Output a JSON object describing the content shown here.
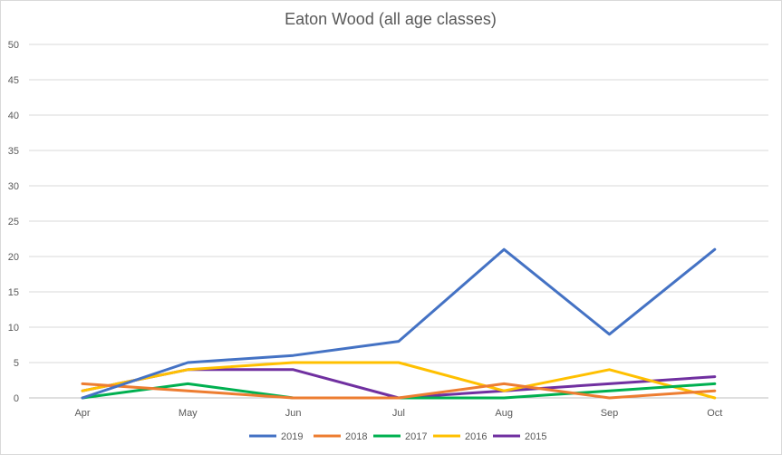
{
  "chart_data": {
    "type": "line",
    "title": "Eaton Wood (all age classes)",
    "xlabel": "",
    "ylabel": "",
    "categories": [
      "Apr",
      "May",
      "Jun",
      "Jul",
      "Aug",
      "Sep",
      "Oct"
    ],
    "ylim": [
      0,
      50
    ],
    "yticks": [
      0,
      5,
      10,
      15,
      20,
      25,
      30,
      35,
      40,
      45,
      50
    ],
    "grid": true,
    "legend": "bottom",
    "series": [
      {
        "name": "2019",
        "color": "#4472C4",
        "values": [
          0,
          5,
          6,
          8,
          21,
          9,
          21
        ]
      },
      {
        "name": "2018",
        "color": "#ED7D31",
        "values": [
          2,
          1,
          0,
          0,
          2,
          0,
          1
        ]
      },
      {
        "name": "2017",
        "color": "#00B050",
        "values": [
          0,
          2,
          0,
          0,
          0,
          1,
          2
        ]
      },
      {
        "name": "2016",
        "color": "#FFC000",
        "values": [
          1,
          4,
          5,
          5,
          1,
          4,
          0
        ]
      },
      {
        "name": "2015",
        "color": "#7030A0",
        "values": [
          1,
          4,
          4,
          0,
          1,
          2,
          3
        ]
      }
    ]
  }
}
